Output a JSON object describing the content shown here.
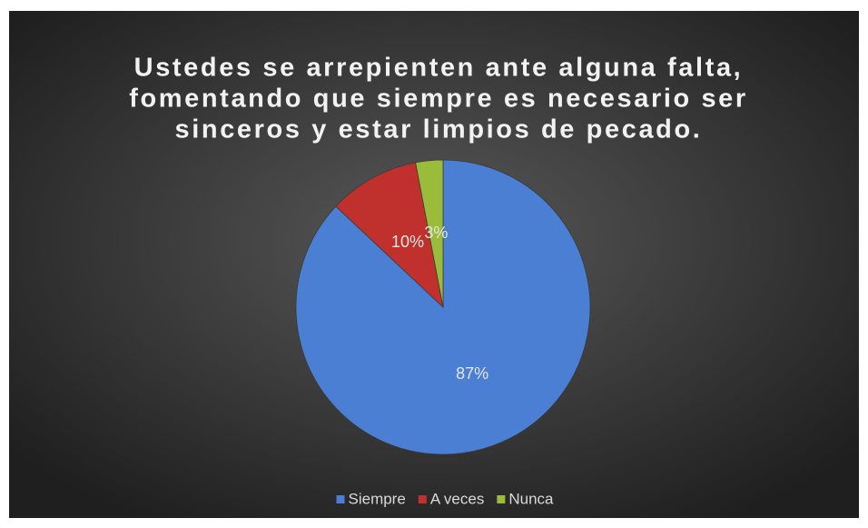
{
  "chart_data": {
    "type": "pie",
    "title": [
      "Ustedes se arrepienten ante alguna falta,",
      "fomentando que siempre es necesario ser",
      "sinceros y estar limpios de pecado."
    ],
    "categories": [
      "Siempre",
      "A veces",
      "Nunca"
    ],
    "values": [
      87,
      10,
      3
    ],
    "value_labels": [
      "87%",
      "10%",
      "3%"
    ],
    "colors": [
      "#4a7fd4",
      "#c0312e",
      "#9bbb3b"
    ],
    "legend": "bottom"
  }
}
